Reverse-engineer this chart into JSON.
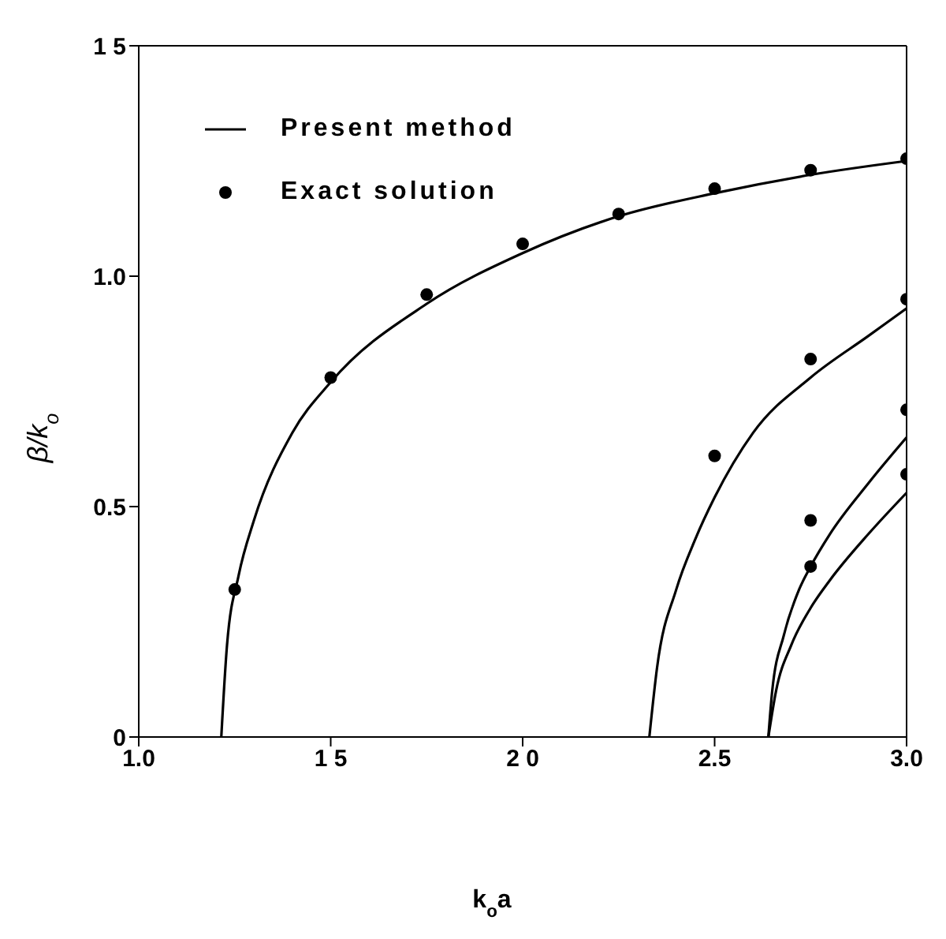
{
  "chart_data": {
    "type": "line",
    "xlabel": "k$_{o}$a",
    "ylabel": "β/k$_{o}$",
    "xlim": [
      1.0,
      3.0
    ],
    "ylim": [
      0,
      1.5
    ],
    "xticks": [
      {
        "value": 1.0,
        "label": "1.0"
      },
      {
        "value": 1.5,
        "label": "1 5"
      },
      {
        "value": 2.0,
        "label": "2 0"
      },
      {
        "value": 2.5,
        "label": "2.5"
      },
      {
        "value": 3.0,
        "label": "3.0"
      }
    ],
    "yticks": [
      0,
      {
        "value": 0.5,
        "label": "0.5"
      },
      {
        "value": 1.0,
        "label": "1.0"
      },
      {
        "value": 1.5,
        "label": "1 5"
      }
    ],
    "legend": "top left",
    "line_style": "solid",
    "marker": "none",
    "series": [
      {
        "name": "Present method",
        "color": "#000000",
        "x": [
          1.215,
          1.23,
          1.26,
          1.3,
          1.4,
          1.5,
          1.75,
          2.0,
          2.25,
          2.5,
          2.75,
          3.0
        ],
        "values": [
          0,
          0.2,
          0.35,
          0.47,
          0.66,
          0.77,
          0.94,
          1.05,
          1.13,
          1.18,
          1.22,
          1.25
        ]
      },
      {
        "color": "#000000",
        "x": [
          2.33,
          2.35,
          2.4,
          2.45,
          2.5,
          2.6,
          2.75,
          2.9,
          3.0
        ],
        "values": [
          0,
          0.15,
          0.32,
          0.43,
          0.52,
          0.66,
          0.78,
          0.87,
          0.93
        ]
      },
      {
        "color": "#000000",
        "x": [
          2.64,
          2.65,
          2.68,
          2.72,
          2.75,
          2.8,
          2.9,
          3.0
        ],
        "values": [
          0,
          0.1,
          0.22,
          0.32,
          0.37,
          0.44,
          0.55,
          0.65
        ]
      },
      {
        "color": "#000000",
        "x": [
          2.64,
          2.66,
          2.7,
          2.75,
          2.8,
          2.9,
          3.0
        ],
        "values": [
          0,
          0.1,
          0.2,
          0.28,
          0.34,
          0.44,
          0.53
        ]
      },
      {
        "name": "Exact solution",
        "type": "scatter",
        "color": "#000000",
        "marker": "circle",
        "x": [
          1.25,
          1.5,
          1.75,
          2.0,
          2.25,
          2.5,
          2.75,
          3.0,
          2.5,
          2.75,
          3.0,
          2.75,
          2.75,
          3.0,
          3.0
        ],
        "values": [
          0.32,
          0.78,
          0.96,
          1.07,
          1.135,
          1.19,
          1.23,
          1.255,
          0.61,
          0.82,
          0.95,
          0.47,
          0.37,
          0.71,
          0.57
        ]
      }
    ]
  }
}
